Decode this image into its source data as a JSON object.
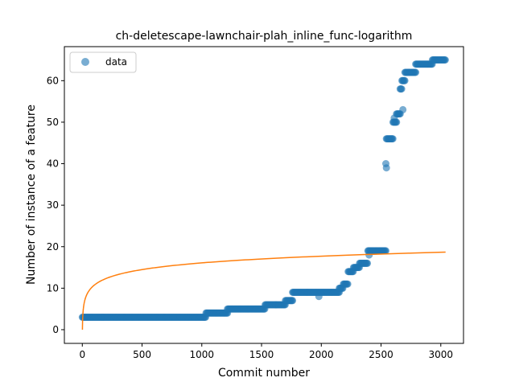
{
  "chart_data": {
    "type": "scatter",
    "title": "ch-deletescape-lawnchair-plah_inline_func-logarithm",
    "xlabel": "Commit number",
    "ylabel": "Number of instance of a feature",
    "xlim": [
      -150,
      3190
    ],
    "ylim": [
      -3.3,
      68.2
    ],
    "xticks": [
      0,
      500,
      1000,
      1500,
      2000,
      2500,
      3000
    ],
    "yticks": [
      0,
      10,
      20,
      30,
      40,
      50,
      60
    ],
    "grid": false,
    "legend": {
      "position": "top-left",
      "entries": [
        "data"
      ]
    },
    "colors": {
      "data": "#1f77b4",
      "fit": "#ff7f0e"
    },
    "series": [
      {
        "name": "data",
        "kind": "scatter",
        "steps": [
          [
            0,
            1035,
            3
          ],
          [
            1035,
            1215,
            4
          ],
          [
            1215,
            1530,
            5
          ],
          [
            1530,
            1620,
            6
          ],
          [
            1620,
            1700,
            6
          ],
          [
            1700,
            1760,
            7
          ],
          [
            1760,
            2150,
            9
          ],
          [
            2150,
            2185,
            10
          ],
          [
            2185,
            2225,
            11
          ],
          [
            2225,
            2270,
            14
          ],
          [
            2270,
            2320,
            15
          ],
          [
            2320,
            2390,
            16
          ],
          [
            2390,
            2545,
            19
          ],
          [
            2545,
            2600,
            46
          ],
          [
            2600,
            2630,
            50
          ],
          [
            2630,
            2660,
            52
          ],
          [
            2660,
            2675,
            58
          ],
          [
            2675,
            2700,
            60
          ],
          [
            2700,
            2790,
            62
          ],
          [
            2790,
            2930,
            64
          ],
          [
            2930,
            3040,
            65
          ]
        ],
        "outliers": [
          [
            1980,
            8
          ],
          [
            2540,
            40
          ],
          [
            2545,
            39
          ],
          [
            2683,
            53
          ],
          [
            2610,
            51
          ],
          [
            2400,
            18
          ]
        ]
      },
      {
        "name": "",
        "kind": "line",
        "model": "logarithm",
        "coefficients": {
          "a": 2.33,
          "b": 0
        },
        "x_range": [
          1,
          3040
        ]
      }
    ]
  }
}
